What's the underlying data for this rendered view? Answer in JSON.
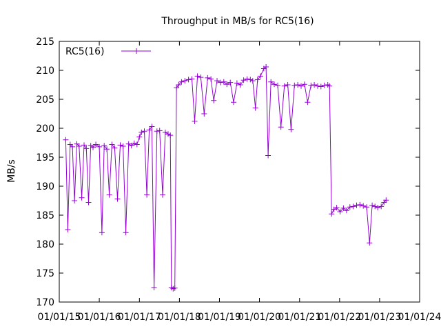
{
  "chart_data": {
    "type": "line",
    "title": "Throughput in MB/s for RC5(16)",
    "xlabel": "",
    "ylabel": "MB/s",
    "ylim": [
      170,
      215
    ],
    "y_ticks": [
      170,
      175,
      180,
      185,
      190,
      195,
      200,
      205,
      210,
      215
    ],
    "x_tick_labels": [
      "01/01/15",
      "01/01/16",
      "01/01/17",
      "01/01/18",
      "01/01/19",
      "01/01/20",
      "01/01/21",
      "01/01/22",
      "01/01/23",
      "01/01/24"
    ],
    "x_tick_dates": [
      "2015-01-01",
      "2016-01-01",
      "2017-01-01",
      "2018-01-01",
      "2019-01-01",
      "2020-01-01",
      "2021-01-01",
      "2022-01-01",
      "2023-01-01",
      "2024-01-01"
    ],
    "xlim": [
      "2015-01-01",
      "2024-01-01"
    ],
    "grid": false,
    "legend_position": "top-left",
    "series": [
      {
        "name": "RC5(16)",
        "color": "#9400d3",
        "marker": "plus",
        "points": [
          [
            "2015-03-01",
            198.0
          ],
          [
            "2015-03-20",
            182.5
          ],
          [
            "2015-04-10",
            197.2
          ],
          [
            "2015-05-01",
            196.8
          ],
          [
            "2015-05-20",
            187.5
          ],
          [
            "2015-06-10",
            197.3
          ],
          [
            "2015-07-01",
            196.9
          ],
          [
            "2015-07-25",
            188.0
          ],
          [
            "2015-08-15",
            197.1
          ],
          [
            "2015-09-05",
            196.5
          ],
          [
            "2015-09-25",
            187.2
          ],
          [
            "2015-10-15",
            197.0
          ],
          [
            "2015-11-05",
            196.7
          ],
          [
            "2015-12-01",
            197.2
          ],
          [
            "2016-01-01",
            196.8
          ],
          [
            "2016-01-25",
            182.0
          ],
          [
            "2016-02-15",
            197.0
          ],
          [
            "2016-03-10",
            196.4
          ],
          [
            "2016-04-01",
            188.5
          ],
          [
            "2016-04-25",
            197.2
          ],
          [
            "2016-05-20",
            196.6
          ],
          [
            "2016-06-15",
            187.8
          ],
          [
            "2016-07-10",
            197.1
          ],
          [
            "2016-08-05",
            196.9
          ],
          [
            "2016-08-30",
            182.0
          ],
          [
            "2016-09-25",
            197.3
          ],
          [
            "2016-10-20",
            197.0
          ],
          [
            "2016-11-15",
            197.4
          ],
          [
            "2016-12-10",
            197.2
          ],
          [
            "2017-01-01",
            198.5
          ],
          [
            "2017-01-20",
            199.3
          ],
          [
            "2017-02-15",
            199.5
          ],
          [
            "2017-03-10",
            188.5
          ],
          [
            "2017-04-01",
            199.7
          ],
          [
            "2017-04-25",
            200.3
          ],
          [
            "2017-05-15",
            172.5
          ],
          [
            "2017-06-10",
            199.5
          ],
          [
            "2017-07-05",
            199.6
          ],
          [
            "2017-08-01",
            188.5
          ],
          [
            "2017-08-25",
            199.3
          ],
          [
            "2017-09-20",
            199.0
          ],
          [
            "2017-10-10",
            198.8
          ],
          [
            "2017-10-20",
            172.5
          ],
          [
            "2017-11-05",
            172.3
          ],
          [
            "2017-11-20",
            172.4
          ],
          [
            "2017-12-05",
            207.0
          ],
          [
            "2017-12-25",
            207.5
          ],
          [
            "2018-01-20",
            208.0
          ],
          [
            "2018-02-20",
            208.2
          ],
          [
            "2018-03-25",
            208.4
          ],
          [
            "2018-04-25",
            208.5
          ],
          [
            "2018-05-20",
            201.2
          ],
          [
            "2018-06-15",
            209.0
          ],
          [
            "2018-07-15",
            208.8
          ],
          [
            "2018-08-15",
            202.5
          ],
          [
            "2018-09-15",
            208.7
          ],
          [
            "2018-10-15",
            208.5
          ],
          [
            "2018-11-10",
            204.8
          ],
          [
            "2018-12-10",
            208.2
          ],
          [
            "2019-01-10",
            207.9
          ],
          [
            "2019-02-10",
            208.0
          ],
          [
            "2019-03-10",
            207.6
          ],
          [
            "2019-04-10",
            207.9
          ],
          [
            "2019-05-10",
            204.5
          ],
          [
            "2019-06-10",
            207.8
          ],
          [
            "2019-07-10",
            207.5
          ],
          [
            "2019-08-10",
            208.3
          ],
          [
            "2019-09-10",
            208.5
          ],
          [
            "2019-10-10",
            208.4
          ],
          [
            "2019-11-01",
            208.2
          ],
          [
            "2019-11-25",
            203.5
          ],
          [
            "2019-12-15",
            208.4
          ],
          [
            "2020-01-10",
            209.0
          ],
          [
            "2020-02-10",
            210.3
          ],
          [
            "2020-03-01",
            210.6
          ],
          [
            "2020-03-20",
            195.3
          ],
          [
            "2020-04-15",
            208.0
          ],
          [
            "2020-05-15",
            207.6
          ],
          [
            "2020-06-15",
            207.4
          ],
          [
            "2020-07-15",
            200.2
          ],
          [
            "2020-08-15",
            207.3
          ],
          [
            "2020-09-15",
            207.5
          ],
          [
            "2020-10-15",
            199.8
          ],
          [
            "2020-11-15",
            207.4
          ],
          [
            "2020-12-15",
            207.5
          ],
          [
            "2021-01-15",
            207.3
          ],
          [
            "2021-02-15",
            207.6
          ],
          [
            "2021-03-15",
            204.5
          ],
          [
            "2021-04-15",
            207.4
          ],
          [
            "2021-05-15",
            207.5
          ],
          [
            "2021-06-15",
            207.3
          ],
          [
            "2021-07-15",
            207.2
          ],
          [
            "2021-08-15",
            207.4
          ],
          [
            "2021-09-15",
            207.5
          ],
          [
            "2021-10-01",
            207.3
          ],
          [
            "2021-10-20",
            185.2
          ],
          [
            "2021-11-10",
            186.0
          ],
          [
            "2021-12-05",
            186.3
          ],
          [
            "2022-01-05",
            185.6
          ],
          [
            "2022-02-05",
            186.2
          ],
          [
            "2022-03-05",
            185.8
          ],
          [
            "2022-04-05",
            186.4
          ],
          [
            "2022-05-05",
            186.5
          ],
          [
            "2022-06-05",
            186.7
          ],
          [
            "2022-07-05",
            186.8
          ],
          [
            "2022-08-05",
            186.6
          ],
          [
            "2022-09-05",
            186.4
          ],
          [
            "2022-10-01",
            180.2
          ],
          [
            "2022-10-25",
            186.7
          ],
          [
            "2022-11-20",
            186.5
          ],
          [
            "2022-12-15",
            186.3
          ],
          [
            "2023-01-15",
            186.5
          ],
          [
            "2023-02-10",
            187.2
          ],
          [
            "2023-03-01",
            187.6
          ]
        ]
      }
    ]
  }
}
